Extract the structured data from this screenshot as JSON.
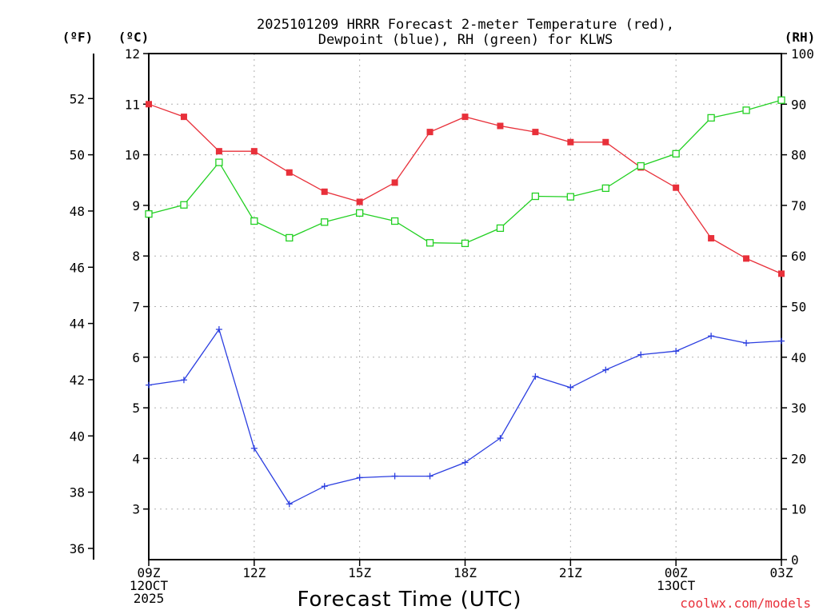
{
  "chart_data": {
    "type": "line",
    "title_line1": "2025101209 HRRR Forecast 2-meter Temperature (red),",
    "title_line2": "Dewpoint (blue), RH (green) for KLWS",
    "xlabel": "Forecast Time (UTC)",
    "credit": "coolwx.com/models",
    "unit_f": "(ºF)",
    "unit_c": "(ºC)",
    "unit_rh": "(RH)",
    "x_hours": [
      0,
      1,
      2,
      3,
      4,
      5,
      6,
      7,
      8,
      9,
      10,
      11,
      12,
      13,
      14,
      15,
      16,
      17,
      18
    ],
    "x_ticks": [
      {
        "hour": 0,
        "lines": [
          "09Z",
          "12OCT",
          "2025"
        ]
      },
      {
        "hour": 3,
        "lines": [
          "12Z"
        ]
      },
      {
        "hour": 6,
        "lines": [
          "15Z"
        ]
      },
      {
        "hour": 9,
        "lines": [
          "18Z"
        ]
      },
      {
        "hour": 12,
        "lines": [
          "21Z"
        ]
      },
      {
        "hour": 15,
        "lines": [
          "00Z",
          "13OCT"
        ]
      },
      {
        "hour": 18,
        "lines": [
          "03Z"
        ]
      }
    ],
    "celsius_range": [
      2,
      12
    ],
    "celsius_ticks": [
      3,
      4,
      5,
      6,
      7,
      8,
      9,
      10,
      11,
      12
    ],
    "fahrenheit_ticks": [
      36,
      38,
      40,
      42,
      44,
      46,
      48,
      50,
      52
    ],
    "rh_range": [
      0,
      100
    ],
    "rh_ticks": [
      0,
      10,
      20,
      30,
      40,
      50,
      60,
      70,
      80,
      90,
      100
    ],
    "grid": true,
    "series": [
      {
        "name": "Temperature",
        "unit": "C",
        "color": "#e8303a",
        "marker": "filled-square",
        "values": [
          11.0,
          10.75,
          10.07,
          10.07,
          9.65,
          9.27,
          9.07,
          9.45,
          10.45,
          10.75,
          10.57,
          10.45,
          10.25,
          10.25,
          9.75,
          9.35,
          8.35,
          7.95,
          7.65
        ]
      },
      {
        "name": "Dewpoint",
        "unit": "C",
        "color": "#2b3ee0",
        "marker": "plus",
        "values": [
          5.45,
          5.55,
          6.55,
          4.2,
          3.1,
          3.45,
          3.62,
          3.65,
          3.65,
          3.92,
          4.4,
          5.62,
          5.4,
          5.75,
          6.05,
          6.12,
          6.42,
          6.28,
          6.32
        ]
      },
      {
        "name": "RH",
        "unit": "%",
        "color": "#22d022",
        "marker": "open-square",
        "values": [
          68.3,
          70.1,
          78.5,
          66.9,
          63.6,
          66.7,
          68.5,
          66.9,
          62.6,
          62.5,
          65.5,
          71.8,
          71.7,
          73.4,
          77.8,
          80.2,
          87.3,
          88.8,
          90.8
        ]
      }
    ]
  }
}
